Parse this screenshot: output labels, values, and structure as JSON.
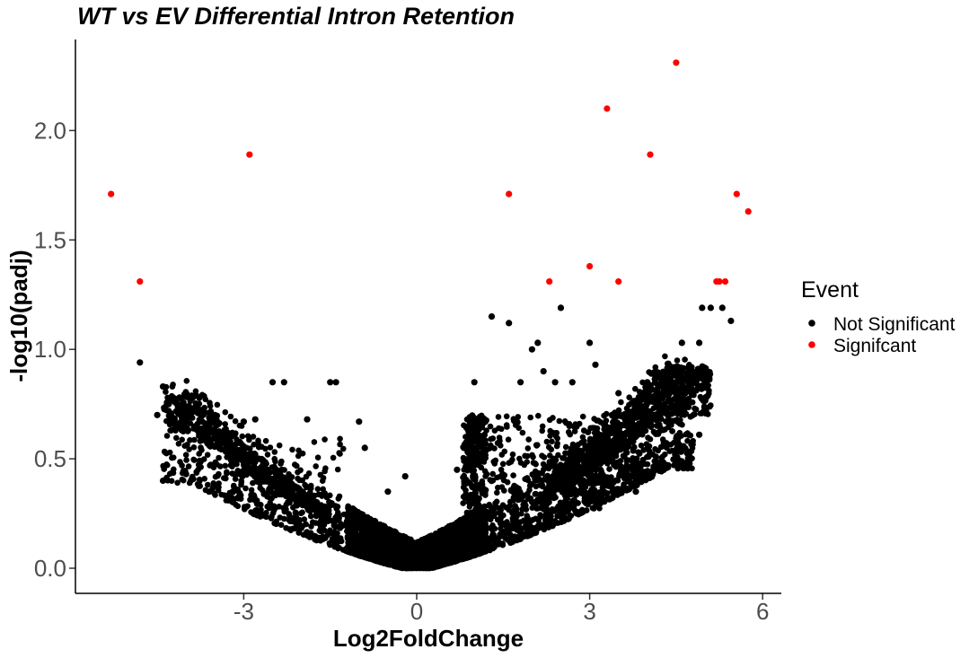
{
  "chart_data": {
    "type": "scatter",
    "title": "WT vs EV Differential Intron Retention",
    "xlabel": "Log2FoldChange",
    "ylabel": "-log10(padj)",
    "xlim": [
      -5.8,
      6.35
    ],
    "ylim": [
      -0.12,
      2.42
    ],
    "x_ticks": [
      -3,
      0,
      3,
      6
    ],
    "x_tick_labels": [
      "-3",
      "0",
      "3",
      "6"
    ],
    "y_ticks": [
      0.0,
      0.5,
      1.0,
      1.5,
      2.0
    ],
    "y_tick_labels": [
      "0.0",
      "0.5",
      "1.0",
      "1.5",
      "2.0"
    ],
    "grid": false,
    "legend": {
      "title": "Event",
      "position": "right"
    },
    "series": [
      {
        "name": "Not Significant",
        "color": "#000000",
        "points": [
          [
            -4.8,
            0.94
          ],
          [
            -4.4,
            0.83
          ],
          [
            -4.3,
            0.75
          ],
          [
            -4.2,
            0.68
          ],
          [
            -4.5,
            0.7
          ],
          [
            -4.4,
            0.4
          ],
          [
            -4.0,
            0.43
          ],
          [
            -3.6,
            0.35
          ],
          [
            -2.5,
            0.85
          ],
          [
            -2.3,
            0.85
          ],
          [
            -1.9,
            0.68
          ],
          [
            -1.4,
            0.85
          ],
          [
            -1.5,
            0.85
          ],
          [
            -1.0,
            0.67
          ],
          [
            -0.9,
            0.55
          ],
          [
            -3.0,
            0.67
          ],
          [
            -2.8,
            0.68
          ],
          [
            -0.5,
            0.35
          ],
          [
            -0.2,
            0.42
          ],
          [
            -3.5,
            0.7
          ],
          [
            -3.3,
            0.62
          ],
          [
            1.3,
            1.15
          ],
          [
            1.6,
            1.12
          ],
          [
            2.1,
            1.03
          ],
          [
            2.0,
            1.0
          ],
          [
            2.5,
            1.19
          ],
          [
            2.2,
            0.9
          ],
          [
            2.4,
            0.85
          ],
          [
            3.0,
            1.03
          ],
          [
            3.1,
            0.93
          ],
          [
            4.0,
            0.85
          ],
          [
            4.5,
            0.85
          ],
          [
            4.8,
            0.85
          ],
          [
            4.95,
            1.19
          ],
          [
            5.1,
            1.19
          ],
          [
            5.3,
            1.19
          ],
          [
            5.45,
            1.13
          ],
          [
            4.6,
            1.03
          ],
          [
            4.9,
            1.03
          ],
          [
            4.9,
            0.61
          ],
          [
            3.8,
            0.35
          ],
          [
            5.0,
            0.85
          ],
          [
            1.0,
            0.85
          ],
          [
            1.8,
            0.85
          ],
          [
            2.7,
            0.85
          ],
          [
            3.5,
            0.8
          ],
          [
            0.7,
            0.45
          ],
          [
            4.3,
            0.75
          ]
        ]
      },
      {
        "name": "Signifcant",
        "color": "#ff0000",
        "points": [
          [
            -5.3,
            1.71
          ],
          [
            -4.8,
            1.31
          ],
          [
            -2.9,
            1.89
          ],
          [
            1.6,
            1.71
          ],
          [
            2.3,
            1.31
          ],
          [
            3.0,
            1.38
          ],
          [
            3.3,
            2.1
          ],
          [
            3.5,
            1.31
          ],
          [
            4.05,
            1.89
          ],
          [
            4.5,
            2.31
          ],
          [
            5.2,
            1.31
          ],
          [
            5.25,
            1.31
          ],
          [
            5.35,
            1.31
          ],
          [
            5.55,
            1.71
          ],
          [
            5.75,
            1.63
          ]
        ]
      }
    ]
  }
}
